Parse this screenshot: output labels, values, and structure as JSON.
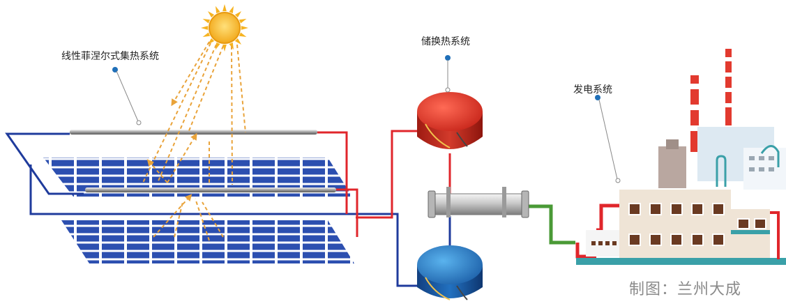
{
  "labels": {
    "collector": "线性菲涅尔式集热系统",
    "storage": "储换热系统",
    "power": "发电系统"
  },
  "credit": "制图：兰州大成",
  "colors": {
    "hot_pipe": "#e0262b",
    "cold_pipe": "#1f3b9c",
    "green_pipe": "#4a9a36",
    "hot_tank": "#d8392b",
    "cold_tank": "#1f6fb8",
    "sun": "#f6b320",
    "ray": "#e9a33a",
    "panel": "#2c4fb0",
    "dot": "#1f6fb8"
  }
}
